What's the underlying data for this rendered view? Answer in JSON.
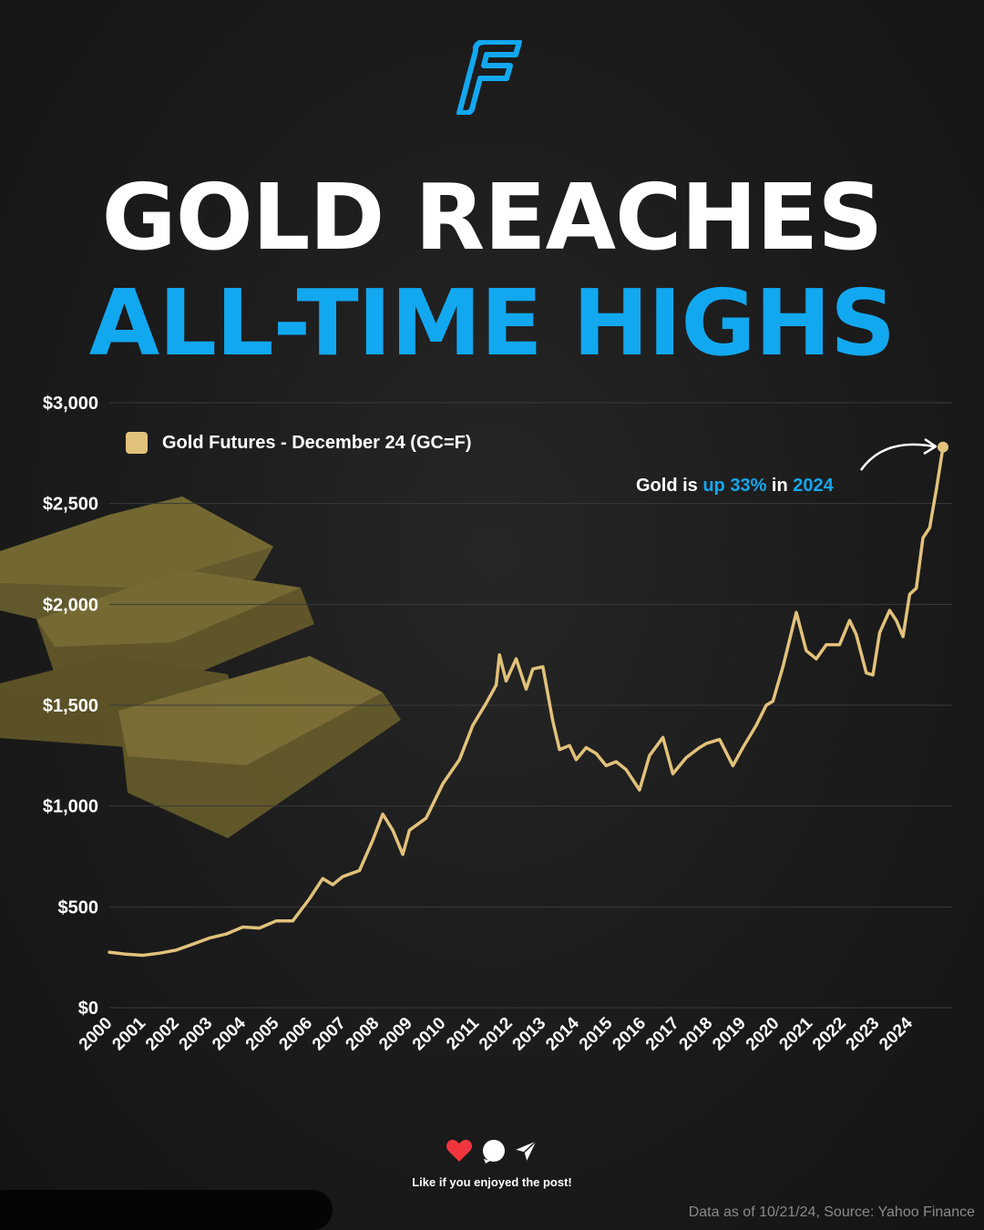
{
  "title_line1": "GOLD REACHES",
  "title_line2": "ALL-TIME HIGHS",
  "colors": {
    "title_accent": "#12a8f0",
    "gold": "#e2c27a",
    "background": "#1e1e1e"
  },
  "annotation": {
    "prefix": "Gold is ",
    "highlight1": "up 33%",
    "middle": " in ",
    "highlight2": "2024"
  },
  "footer": {
    "like_text": "Like if you enjoyed the post!",
    "source": "Data as of 10/21/24, Source: Yahoo Finance"
  },
  "icons": [
    "logo-f-icon",
    "heart-icon",
    "comment-icon",
    "share-icon",
    "gold-bars-image"
  ],
  "chart_data": {
    "type": "line",
    "legend": "Gold Futures - December 24 (GC=F)",
    "legend_position": "top-left",
    "ylim": [
      0,
      3000
    ],
    "yticks": [
      0,
      500,
      1000,
      1500,
      2000,
      2500,
      3000
    ],
    "ytick_labels": [
      "$0",
      "$500",
      "$1,000",
      "$1,500",
      "$2,000",
      "$2,500",
      "$3,000"
    ],
    "xticks": [
      "2000",
      "2001",
      "2002",
      "2003",
      "2004",
      "2005",
      "2006",
      "2007",
      "2008",
      "2009",
      "2010",
      "2011",
      "2012",
      "2013",
      "2014",
      "2015",
      "2016",
      "2017",
      "2018",
      "2019",
      "2020",
      "2021",
      "2022",
      "2023",
      "2024"
    ],
    "grid": true,
    "series": [
      {
        "name": "Gold Futures - December 24 (GC=F)",
        "x": [
          2000.0,
          2000.5,
          2001.0,
          2001.5,
          2002.0,
          2002.5,
          2003.0,
          2003.5,
          2004.0,
          2004.5,
          2005.0,
          2005.5,
          2006.0,
          2006.4,
          2006.7,
          2007.0,
          2007.5,
          2007.9,
          2008.2,
          2008.5,
          2008.8,
          2009.0,
          2009.5,
          2010.0,
          2010.5,
          2010.9,
          2011.3,
          2011.6,
          2011.7,
          2011.9,
          2012.2,
          2012.5,
          2012.7,
          2013.0,
          2013.3,
          2013.5,
          2013.8,
          2014.0,
          2014.3,
          2014.6,
          2014.9,
          2015.2,
          2015.5,
          2015.9,
          2016.2,
          2016.6,
          2016.9,
          2017.3,
          2017.7,
          2017.9,
          2018.3,
          2018.7,
          2019.0,
          2019.4,
          2019.7,
          2019.9,
          2020.2,
          2020.6,
          2020.9,
          2021.2,
          2021.5,
          2021.9,
          2022.2,
          2022.4,
          2022.7,
          2022.9,
          2023.1,
          2023.4,
          2023.6,
          2023.8,
          2024.0,
          2024.2,
          2024.4,
          2024.6,
          2024.8,
          2025.0
        ],
        "y": [
          275,
          265,
          260,
          270,
          285,
          315,
          345,
          365,
          400,
          395,
          430,
          430,
          540,
          640,
          610,
          650,
          680,
          830,
          960,
          880,
          760,
          880,
          940,
          1110,
          1230,
          1400,
          1510,
          1600,
          1750,
          1620,
          1730,
          1580,
          1680,
          1690,
          1420,
          1280,
          1300,
          1230,
          1290,
          1260,
          1200,
          1220,
          1180,
          1080,
          1250,
          1340,
          1160,
          1240,
          1290,
          1310,
          1330,
          1200,
          1290,
          1400,
          1500,
          1520,
          1690,
          1960,
          1770,
          1730,
          1800,
          1800,
          1920,
          1850,
          1660,
          1650,
          1860,
          1970,
          1920,
          1840,
          2050,
          2080,
          2330,
          2380,
          2570,
          2780
        ]
      }
    ]
  }
}
